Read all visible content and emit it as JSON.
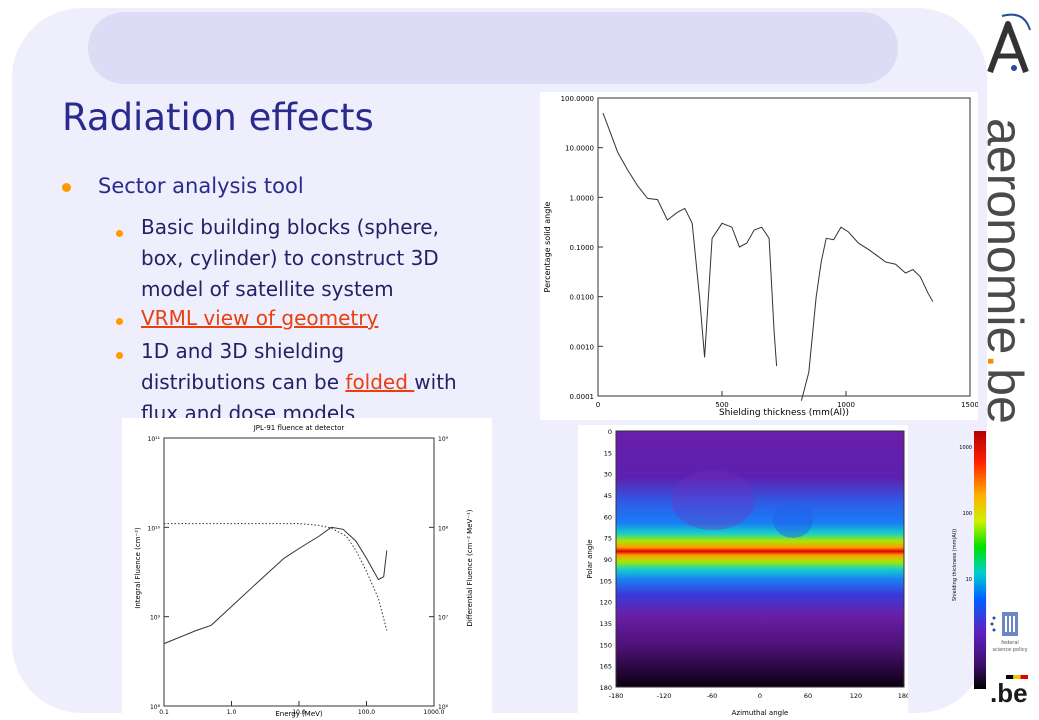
{
  "slide": {
    "title": "Radiation effects",
    "bullet1": "Sector analysis tool",
    "sub1": [
      "Basic building blocks (sphere,",
      "box, cylinder) to construct 3D",
      "model of satellite system"
    ],
    "sub2_link": "VRML view of geometry",
    "sub3_line1": "1D and 3D shielding",
    "sub3_line2a": "distributions can be ",
    "sub3_link": "folded ",
    "sub3_line2b": "with",
    "sub3_line3": "flux and dose models"
  },
  "brand": {
    "name_a": "aeronomie",
    "name_dot": ".",
    "name_b": "be",
    "be_logo": ".be",
    "fed_lines": [
      "federal",
      "science policy"
    ],
    "colors": {
      "accent": "#ff9900",
      "title": "#2a2a8c",
      "link": "#e8400e",
      "brand_dot": "#f28c00"
    }
  },
  "chart_data": [
    {
      "type": "line",
      "title": "",
      "xlabel": "Shielding thickness (mm(Al))",
      "ylabel": "Percentage solid angle",
      "xlim": [
        0,
        1500
      ],
      "ylim": [
        0.0001,
        100
      ],
      "yscale": "log",
      "xticks": [
        "0",
        "500",
        "1000",
        "1500"
      ],
      "yticks": [
        "0.0001",
        "0.0010",
        "0.0100",
        "0.1000",
        "1.0000",
        "10.0000",
        "100.0000"
      ],
      "series": [
        {
          "values": [
            [
              20,
              50
            ],
            [
              50,
              20
            ],
            [
              80,
              8
            ],
            [
              120,
              3.5
            ],
            [
              160,
              1.7
            ],
            [
              200,
              0.95
            ],
            [
              240,
              0.9
            ],
            [
              280,
              0.35
            ],
            [
              320,
              0.5
            ],
            [
              350,
              0.6
            ],
            [
              380,
              0.3
            ],
            [
              410,
              0.009
            ],
            [
              430,
              0.0006
            ],
            [
              460,
              0.15
            ],
            [
              500,
              0.3
            ],
            [
              540,
              0.25
            ],
            [
              570,
              0.1
            ],
            [
              600,
              0.12
            ],
            [
              630,
              0.22
            ],
            [
              660,
              0.25
            ],
            [
              690,
              0.15
            ],
            [
              710,
              0.002
            ],
            [
              720,
              0.0004
            ]
          ]
        },
        {
          "values": [
            [
              820,
              8e-05
            ],
            [
              850,
              0.0003
            ],
            [
              880,
              0.01
            ],
            [
              900,
              0.05
            ],
            [
              920,
              0.15
            ],
            [
              950,
              0.14
            ],
            [
              980,
              0.25
            ],
            [
              1010,
              0.2
            ],
            [
              1050,
              0.12
            ],
            [
              1090,
              0.09
            ],
            [
              1120,
              0.07
            ],
            [
              1160,
              0.05
            ],
            [
              1200,
              0.045
            ],
            [
              1240,
              0.03
            ],
            [
              1270,
              0.035
            ],
            [
              1300,
              0.025
            ],
            [
              1330,
              0.012
            ],
            [
              1350,
              0.008
            ]
          ]
        }
      ]
    },
    {
      "type": "line",
      "title": "JPL-91 fluence at detector",
      "xlabel": "Energy (MeV)",
      "ylabel": "Integral Fluence (cm⁻²)",
      "ylabel_right": "Differential Fluence (cm⁻² MeV⁻¹)",
      "xscale": "log",
      "yscale": "log",
      "xlim": [
        0.1,
        1000
      ],
      "ylim": [
        100000000.0,
        100000000000.0
      ],
      "xticks": [
        "0.1",
        "1.0",
        "10.0",
        "100.0",
        "1000.0"
      ],
      "yticks": [
        "10⁸",
        "10⁹",
        "10¹⁰",
        "10¹¹"
      ],
      "yticks_right": [
        "10⁶",
        "10⁷",
        "10⁸",
        "10⁹"
      ],
      "series": [
        {
          "style": "solid",
          "values": [
            [
              0.1,
              500000000.0
            ],
            [
              0.3,
              700000000.0
            ],
            [
              0.5,
              800000000.0
            ],
            [
              1,
              1300000000.0
            ],
            [
              3,
              2800000000.0
            ],
            [
              6,
              4500000000.0
            ],
            [
              10,
              5800000000.0
            ],
            [
              20,
              8000000000.0
            ],
            [
              30,
              10000000000.0
            ],
            [
              45,
              9500000000.0
            ],
            [
              70,
              7000000000.0
            ],
            [
              100,
              4500000000.0
            ],
            [
              150,
              2600000000.0
            ],
            [
              180,
              2800000000.0
            ],
            [
              200,
              5500000000.0
            ]
          ]
        },
        {
          "style": "dotted",
          "values": [
            [
              0.1,
              11000000000.0
            ],
            [
              1,
              11000000000.0
            ],
            [
              10,
              11000000000.0
            ],
            [
              20,
              10500000000.0
            ],
            [
              30,
              9800000000.0
            ],
            [
              50,
              8000000000.0
            ],
            [
              70,
              5500000000.0
            ],
            [
              100,
              3200000000.0
            ],
            [
              150,
              1600000000.0
            ],
            [
              200,
              700000000.0
            ]
          ]
        }
      ]
    },
    {
      "type": "heatmap",
      "xlabel": "Azimuthal angle",
      "ylabel": "Polar angle",
      "xticks": [
        "-180",
        "-120",
        "-60",
        "0",
        "60",
        "120",
        "180"
      ],
      "yticks": [
        "0",
        "15",
        "30",
        "45",
        "60",
        "75",
        "90",
        "105",
        "120",
        "135",
        "150",
        "165",
        "180"
      ],
      "colorbar": {
        "label": "Shielding thickness (mm(Al))",
        "ticks": [
          "1000",
          "100",
          "10"
        ]
      }
    }
  ]
}
